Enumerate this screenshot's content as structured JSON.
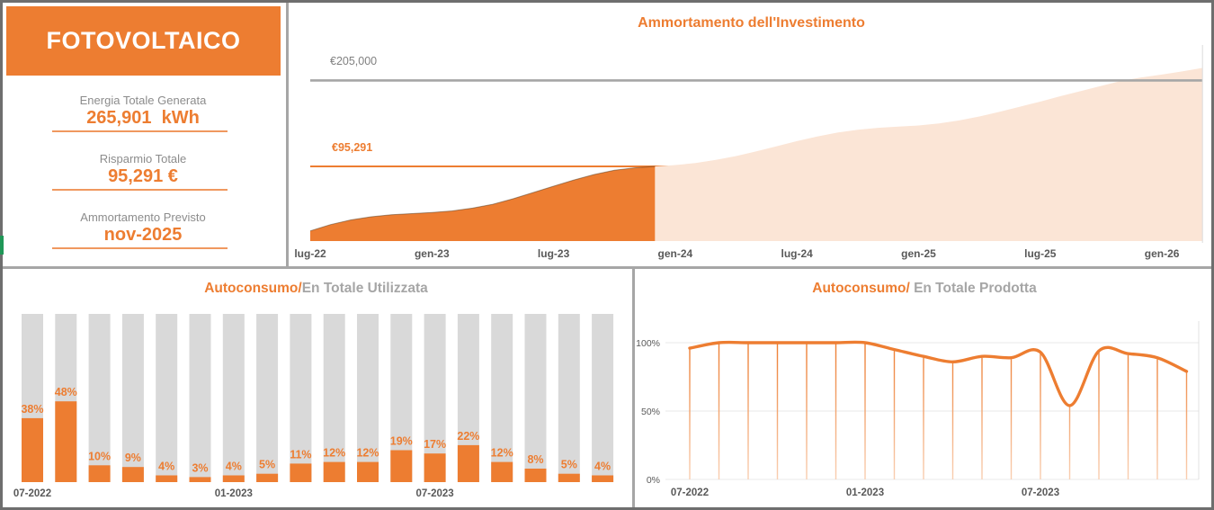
{
  "colors": {
    "accent_orange": "#ED7D31",
    "light_orange_area": "#FBE5D6",
    "bar_gray": "#D9D9D9",
    "line_gray": "#A6A6A6",
    "grid_gray": "#E9E9E9",
    "axis_text": "#595959",
    "kpi_label_gray": "#8C8C8C",
    "title_gray": "#A6A6A6",
    "outer_border": "#6E6E6E",
    "green_sliver": "#1F9757"
  },
  "kpi_panel": {
    "title": "FOTOVOLTAICO",
    "kpis": [
      {
        "label": "Energia Totale Generata",
        "value": "265,901  kWh"
      },
      {
        "label": "Risparmio Totale",
        "value": "95,291 €"
      },
      {
        "label": "Ammortamento Previsto",
        "value": "nov-2025"
      }
    ]
  },
  "chart_data": [
    {
      "type": "area",
      "title": "Ammortamento dell'Investimento",
      "investment_line": {
        "label": "€205,000",
        "value": 205000
      },
      "savings_line": {
        "label": "€95,291",
        "value": 95291
      },
      "x_ticks": {
        "labels": [
          "lug-22",
          "gen-23",
          "lug-23",
          "gen-24",
          "lug-24",
          "gen-25",
          "lug-25",
          "gen-26"
        ],
        "month_index": [
          0,
          6,
          12,
          18,
          24,
          30,
          36,
          42
        ]
      },
      "actual_months": [
        "lug-22",
        "ago-22",
        "set-22",
        "ott-22",
        "nov-22",
        "dic-22",
        "gen-23",
        "feb-23",
        "mar-23",
        "apr-23",
        "mag-23",
        "giu-23",
        "lug-23",
        "ago-23",
        "set-23",
        "ott-23",
        "nov-23",
        "dic-23"
      ],
      "actual_values_eur": [
        13000,
        21000,
        27000,
        31000,
        33500,
        35000,
        36500,
        38500,
        42000,
        47000,
        54000,
        62000,
        70000,
        78000,
        85000,
        90500,
        93500,
        95291
      ],
      "projection_months": [
        "dic-23",
        "gen-24",
        "feb-24",
        "mar-24",
        "apr-24",
        "mag-24",
        "giu-24",
        "lug-24",
        "ago-24",
        "set-24",
        "ott-24",
        "nov-24",
        "dic-24",
        "gen-25",
        "feb-25",
        "mar-25",
        "apr-25",
        "mag-25",
        "giu-25",
        "lug-25",
        "ago-25",
        "set-25",
        "ott-25",
        "nov-25",
        "dic-25",
        "gen-26",
        "feb-26",
        "mar-26"
      ],
      "projection_values_eur": [
        95291,
        97000,
        99500,
        103500,
        108500,
        114500,
        121000,
        127500,
        133500,
        138500,
        142000,
        144500,
        146000,
        147500,
        150000,
        154000,
        159000,
        165000,
        171500,
        178000,
        185000,
        191500,
        198000,
        204500,
        209000,
        212500,
        216500,
        221000
      ],
      "ylim": [
        0,
        235000
      ],
      "legend_position": "none",
      "grid": false
    },
    {
      "type": "bar",
      "title_accent": "Autoconsumo/",
      "title_rest": "En Totale Utilizzata",
      "categories": [
        "07-2022",
        "08-2022",
        "09-2022",
        "10-2022",
        "11-2022",
        "12-2022",
        "01-2023",
        "02-2023",
        "03-2023",
        "04-2023",
        "05-2023",
        "06-2023",
        "07-2023",
        "08-2023",
        "09-2023",
        "10-2023",
        "11-2023",
        "12-2023"
      ],
      "values_pct": [
        38,
        48,
        10,
        9,
        4,
        3,
        4,
        5,
        11,
        12,
        12,
        19,
        17,
        22,
        12,
        8,
        5,
        4
      ],
      "bar_full_pct": 100,
      "x_ticks": {
        "labels": [
          "07-2022",
          "01-2023",
          "07-2023"
        ],
        "indices": [
          0,
          6,
          12
        ]
      },
      "ylim": [
        0,
        100
      ],
      "grid": false
    },
    {
      "type": "line",
      "title_accent": "Autoconsumo/",
      "title_rest": " En Totale Prodotta",
      "categories": [
        "07-2022",
        "08-2022",
        "09-2022",
        "10-2022",
        "11-2022",
        "12-2022",
        "01-2023",
        "02-2023",
        "03-2023",
        "04-2023",
        "05-2023",
        "06-2023",
        "07-2023",
        "08-2023",
        "09-2023",
        "10-2023",
        "11-2023",
        "12-2023"
      ],
      "values_pct": [
        96,
        100,
        100,
        100,
        100,
        100,
        100,
        95,
        90,
        86,
        90,
        89,
        93,
        54,
        94,
        92,
        89,
        79
      ],
      "y_ticks": [
        "0%",
        "50%",
        "100%"
      ],
      "x_ticks": {
        "labels": [
          "07-2022",
          "01-2023",
          "07-2023"
        ],
        "indices": [
          0,
          6,
          12
        ]
      },
      "ylim": [
        0,
        110
      ],
      "grid": true
    }
  ]
}
